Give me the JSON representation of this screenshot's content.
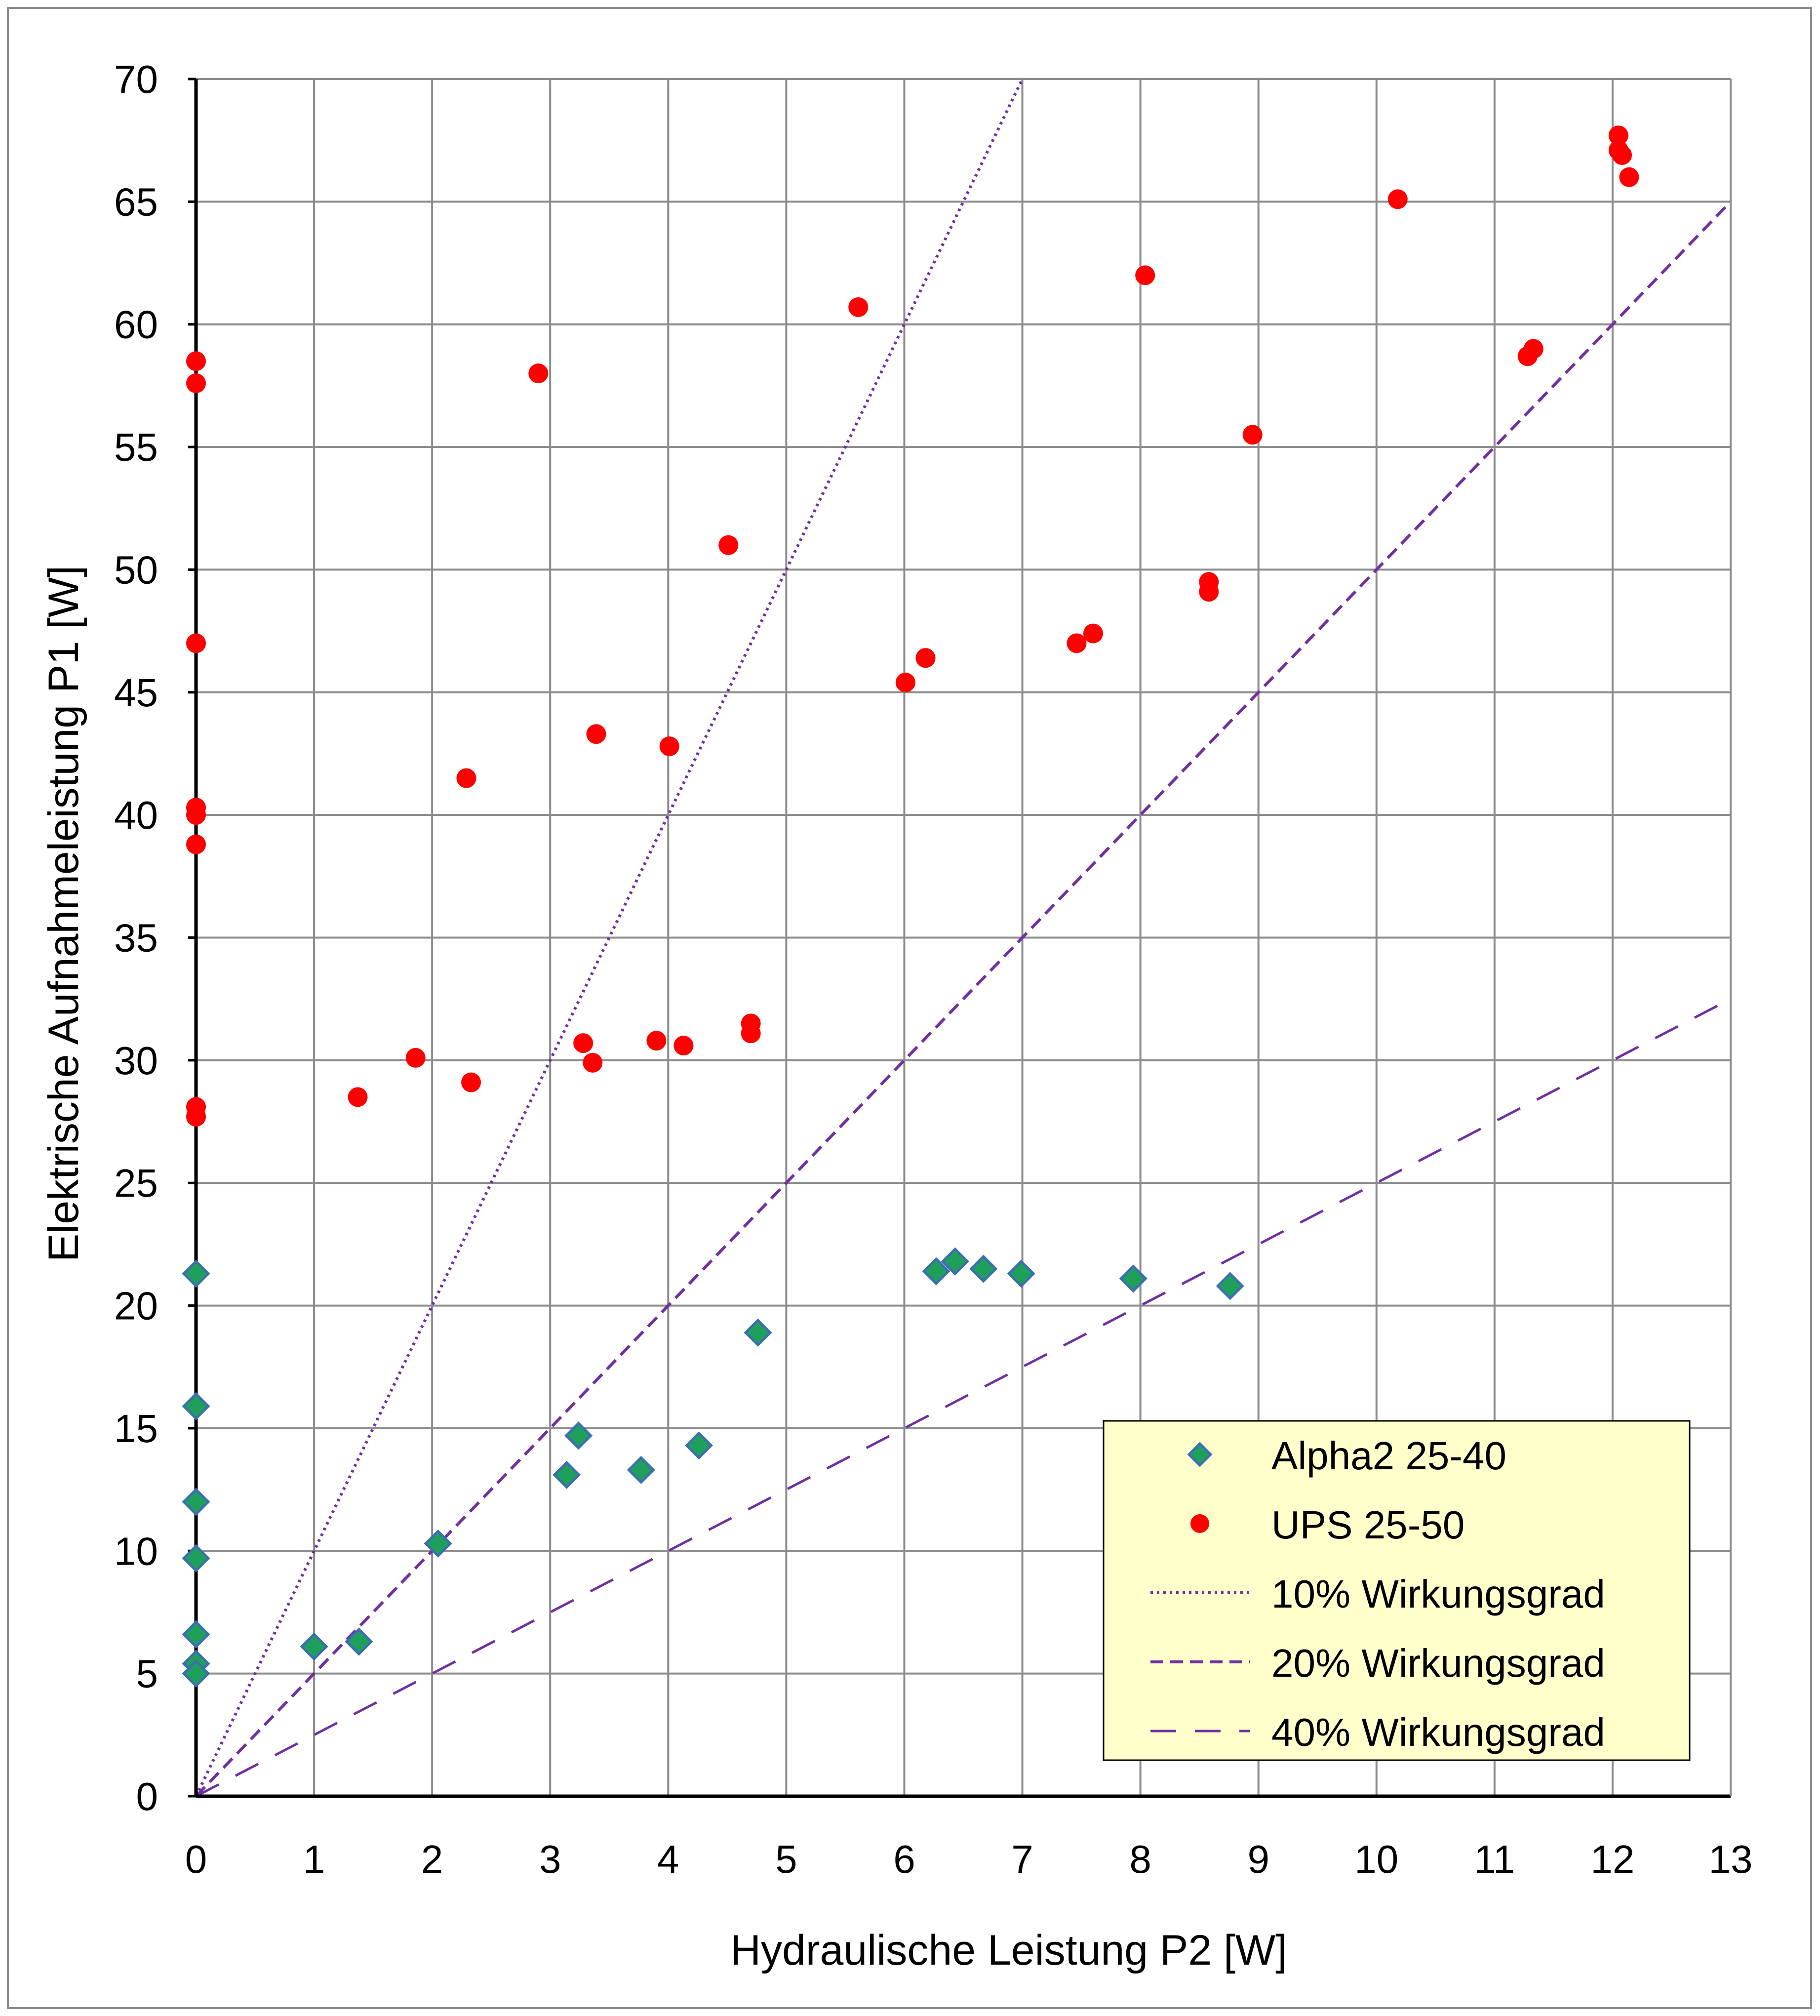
{
  "chart_data": {
    "type": "scatter",
    "title": "",
    "xlabel": "Hydraulische Leistung P2 [W]",
    "ylabel": "Elektrische Aufnahmeleistung P1 [W]",
    "xlim": [
      0,
      13
    ],
    "ylim": [
      0,
      70
    ],
    "xticks": [
      0,
      1,
      2,
      3,
      4,
      5,
      6,
      7,
      8,
      9,
      10,
      11,
      12,
      13
    ],
    "yticks": [
      0,
      5,
      10,
      15,
      20,
      25,
      30,
      35,
      40,
      45,
      50,
      55,
      60,
      65,
      70
    ],
    "grid": true,
    "legend_position": "bottom-right",
    "colors": {
      "alpha2_fill": "#1fa05a",
      "alpha2_edge": "#3b6fb0",
      "ups": "#ff0000",
      "efficiency_lines": "#7030a0",
      "legend_bg": "#ffffcc",
      "grid": "#8c8c8c"
    },
    "series": [
      {
        "name": "Alpha2 25-40",
        "kind": "scatter",
        "marker": "diamond",
        "points": [
          [
            0,
            21.3
          ],
          [
            0,
            15.9
          ],
          [
            0,
            12.0
          ],
          [
            0,
            9.7
          ],
          [
            0,
            6.6
          ],
          [
            0,
            5.4
          ],
          [
            0,
            5.0
          ],
          [
            1.0,
            6.1
          ],
          [
            1.38,
            6.3
          ],
          [
            2.05,
            10.3
          ],
          [
            3.14,
            13.1
          ],
          [
            3.24,
            14.7
          ],
          [
            3.77,
            13.3
          ],
          [
            4.26,
            14.3
          ],
          [
            4.76,
            18.9
          ],
          [
            6.27,
            21.4
          ],
          [
            6.43,
            21.8
          ],
          [
            6.67,
            21.5
          ],
          [
            6.99,
            21.3
          ],
          [
            7.94,
            21.1
          ],
          [
            8.76,
            20.8
          ]
        ]
      },
      {
        "name": "UPS 25-50",
        "kind": "scatter",
        "marker": "circle",
        "points": [
          [
            0,
            58.5
          ],
          [
            0,
            57.6
          ],
          [
            0,
            47.0
          ],
          [
            0,
            40.3
          ],
          [
            0,
            40.0
          ],
          [
            0,
            38.8
          ],
          [
            0,
            28.1
          ],
          [
            0,
            27.7
          ],
          [
            1.37,
            28.5
          ],
          [
            1.86,
            30.1
          ],
          [
            2.29,
            41.5
          ],
          [
            2.33,
            29.1
          ],
          [
            2.9,
            58.0
          ],
          [
            3.28,
            30.7
          ],
          [
            3.36,
            29.9
          ],
          [
            3.39,
            43.3
          ],
          [
            3.9,
            30.8
          ],
          [
            4.01,
            42.8
          ],
          [
            4.13,
            30.6
          ],
          [
            4.51,
            51.0
          ],
          [
            4.7,
            31.5
          ],
          [
            4.7,
            31.1
          ],
          [
            5.61,
            60.7
          ],
          [
            6.01,
            45.4
          ],
          [
            6.18,
            46.4
          ],
          [
            7.46,
            47.0
          ],
          [
            7.6,
            47.4
          ],
          [
            8.04,
            62.0
          ],
          [
            8.58,
            49.5
          ],
          [
            8.58,
            49.1
          ],
          [
            8.95,
            55.5
          ],
          [
            10.18,
            65.1
          ],
          [
            11.28,
            58.7
          ],
          [
            11.33,
            59.0
          ],
          [
            12.05,
            67.7
          ],
          [
            12.05,
            67.1
          ],
          [
            12.08,
            66.9
          ],
          [
            12.14,
            66.0
          ]
        ]
      },
      {
        "name": "10% Wirkungsgrad",
        "kind": "line",
        "dash": "dotted",
        "efficiency": 0.1,
        "slope": 10
      },
      {
        "name": "20% Wirkungsgrad",
        "kind": "line",
        "dash": "dashed",
        "efficiency": 0.2,
        "slope": 5
      },
      {
        "name": "40% Wirkungsgrad",
        "kind": "line",
        "dash": "long-dashed",
        "efficiency": 0.4,
        "slope": 2.5
      }
    ]
  }
}
